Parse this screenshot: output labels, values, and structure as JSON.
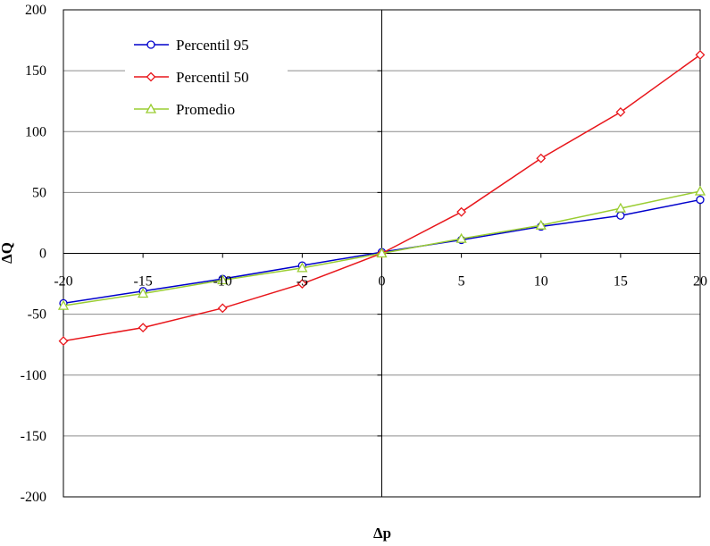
{
  "chart_data": {
    "type": "line",
    "title": "",
    "xlabel": "Δp",
    "ylabel": "ΔQ",
    "xlim": [
      -20,
      20
    ],
    "ylim": [
      -200,
      200
    ],
    "x_ticks": [
      -20,
      -15,
      -10,
      -5,
      0,
      5,
      10,
      15,
      20
    ],
    "y_ticks": [
      -200,
      -150,
      -100,
      -50,
      0,
      50,
      100,
      150,
      200
    ],
    "x_tick_labels": [
      "-20",
      "-15",
      "-10",
      "-5",
      "0",
      "5",
      "10",
      "15",
      "20"
    ],
    "y_tick_labels": [
      "-200",
      "-150",
      "-100",
      "-50",
      "0",
      "50",
      "100",
      "150",
      "200"
    ],
    "grid": "horizontal",
    "legend_position": "top-left",
    "x": [
      -20,
      -15,
      -10,
      -5,
      0,
      5,
      10,
      15,
      20
    ],
    "series": [
      {
        "name": "Percentil 95",
        "color": "#0000cc",
        "marker": "circle",
        "values": [
          -41,
          -31,
          -21,
          -10,
          1,
          11,
          22,
          31,
          44
        ]
      },
      {
        "name": "Percentil 50",
        "color": "#e8161b",
        "marker": "diamond",
        "values": [
          -72,
          -61,
          -45,
          -25,
          0,
          34,
          78,
          116,
          163
        ]
      },
      {
        "name": "Promedio",
        "color": "#9acd32",
        "marker": "triangle",
        "values": [
          -43,
          -33,
          -22,
          -12,
          0,
          12,
          23,
          37,
          51
        ]
      }
    ]
  }
}
